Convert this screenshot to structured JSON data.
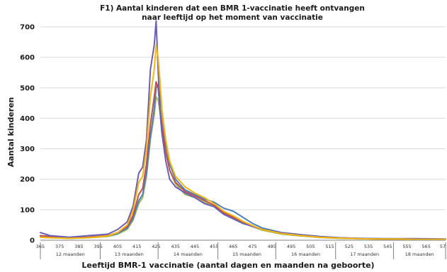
{
  "chart_data": {
    "type": "line",
    "title": "F1) Aantal kinderen dat een BMR 1-vaccinatie heeft ontvangen",
    "subtitle": "naar leeftijd op het moment van vaccinatie",
    "ylabel": "Aantal kinderen",
    "xlabel": "Leeftijd BMR-1 vaccinatie  (aantal dagen en maanden na geboorte)",
    "ylim": [
      0,
      700
    ],
    "xlim": [
      365,
      575
    ],
    "yticks": [
      0,
      100,
      200,
      300,
      400,
      500,
      600,
      700
    ],
    "xtick_labels": [
      "365",
      "375",
      "385",
      "395",
      "405",
      "415",
      "425",
      "435",
      "445",
      "455",
      "465",
      "475",
      "485",
      "495",
      "505",
      "515",
      "525",
      "535",
      "545",
      "555",
      "565",
      "57"
    ],
    "month_labels": [
      "12 maanden",
      "13 maanden",
      "14 maanden",
      "15 maanden",
      "16 maanden",
      "17 maanden",
      "18 maanden"
    ],
    "month_boundaries": [
      365,
      396,
      426,
      457,
      487,
      518,
      548,
      575
    ],
    "grid": "horizontal",
    "colors": [
      "#6a5fb5",
      "#c0504d",
      "#4f81bd",
      "#9bbb59",
      "#f3b80f"
    ],
    "series": [
      {
        "x": [
          365,
          370,
          380,
          390,
          400,
          405,
          410,
          413,
          416,
          418,
          420,
          422,
          424,
          425,
          426,
          427,
          428,
          430,
          432,
          435,
          440,
          445,
          450,
          455,
          460,
          465,
          470,
          475,
          480,
          490,
          500,
          510,
          520,
          530,
          540,
          550,
          560,
          575
        ],
        "values": [
          25,
          15,
          10,
          15,
          20,
          35,
          60,
          110,
          220,
          240,
          330,
          560,
          640,
          720,
          560,
          420,
          350,
          260,
          200,
          175,
          155,
          140,
          120,
          110,
          85,
          70,
          55,
          45,
          35,
          25,
          18,
          12,
          8,
          6,
          5,
          5,
          5,
          4
        ]
      },
      {
        "x": [
          365,
          370,
          380,
          390,
          400,
          405,
          410,
          413,
          416,
          418,
          420,
          422,
          424,
          425,
          426,
          427,
          428,
          430,
          432,
          435,
          440,
          445,
          450,
          455,
          460,
          465,
          470,
          475,
          480,
          490,
          500,
          510,
          520,
          530,
          540,
          550,
          560,
          575
        ],
        "values": [
          15,
          12,
          8,
          10,
          15,
          25,
          45,
          80,
          150,
          170,
          250,
          380,
          470,
          520,
          500,
          430,
          380,
          290,
          230,
          190,
          160,
          145,
          130,
          115,
          90,
          75,
          60,
          45,
          35,
          22,
          15,
          10,
          7,
          5,
          4,
          4,
          3,
          3
        ]
      },
      {
        "x": [
          365,
          370,
          380,
          390,
          400,
          405,
          410,
          413,
          416,
          418,
          420,
          422,
          424,
          425,
          426,
          427,
          428,
          430,
          432,
          435,
          440,
          445,
          450,
          455,
          460,
          465,
          470,
          475,
          480,
          490,
          500,
          510,
          520,
          530,
          540,
          550,
          560,
          575
        ],
        "values": [
          12,
          10,
          8,
          10,
          14,
          22,
          40,
          70,
          130,
          150,
          220,
          340,
          430,
          500,
          510,
          470,
          420,
          320,
          250,
          200,
          165,
          150,
          135,
          125,
          105,
          95,
          75,
          55,
          40,
          25,
          18,
          12,
          8,
          6,
          5,
          4,
          4,
          3
        ]
      },
      {
        "x": [
          365,
          370,
          380,
          390,
          400,
          405,
          410,
          413,
          416,
          418,
          420,
          422,
          424,
          425,
          426,
          427,
          428,
          430,
          432,
          435,
          440,
          445,
          450,
          455,
          460,
          465,
          470,
          475,
          480,
          490,
          500,
          510,
          520,
          530,
          540,
          550,
          560,
          575
        ],
        "values": [
          10,
          8,
          6,
          8,
          12,
          20,
          35,
          65,
          120,
          140,
          210,
          330,
          410,
          470,
          460,
          420,
          370,
          290,
          230,
          185,
          150,
          140,
          125,
          110,
          90,
          75,
          58,
          45,
          33,
          20,
          14,
          9,
          6,
          5,
          4,
          3,
          3,
          3
        ]
      },
      {
        "x": [
          365,
          370,
          380,
          390,
          400,
          405,
          410,
          413,
          416,
          418,
          420,
          422,
          424,
          425,
          426,
          427,
          428,
          430,
          432,
          435,
          440,
          445,
          450,
          455,
          460,
          465,
          470,
          475,
          480,
          490,
          500,
          510,
          520,
          530,
          540,
          550,
          560,
          575
        ],
        "values": [
          10,
          8,
          6,
          8,
          14,
          25,
          50,
          95,
          190,
          210,
          300,
          470,
          560,
          640,
          600,
          520,
          430,
          330,
          260,
          210,
          175,
          155,
          140,
          120,
          95,
          80,
          62,
          48,
          35,
          22,
          15,
          10,
          7,
          5,
          4,
          4,
          3,
          3
        ]
      }
    ]
  }
}
